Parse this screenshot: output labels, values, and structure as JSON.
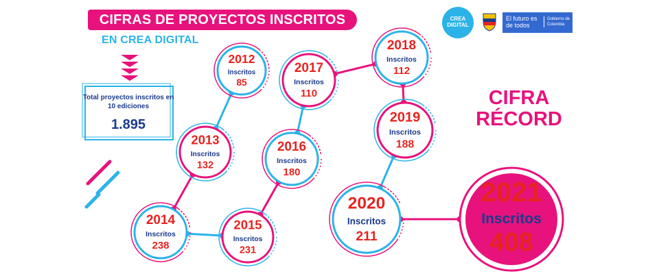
{
  "header": {
    "title": "CIFRAS DE PROYECTOS INSCRITOS",
    "subtitle": "EN CREA DIGITAL"
  },
  "total": {
    "label": "Total  proyectos inscritos en 10 ediciones",
    "value": "1.895"
  },
  "record_label": "CIFRA RÉCORD",
  "logos": {
    "crea": [
      "CREA",
      "DIGITAL"
    ],
    "gov_main": "El futuro es de todos",
    "gov_sub": "Gobierno de Colombia"
  },
  "colors": {
    "pink": "#e8127c",
    "cyan": "#2bb3e8",
    "red": "#e52420",
    "navy": "#1b3a8c"
  },
  "nodes": [
    {
      "year": "2012",
      "label": "Inscritos",
      "value": "85"
    },
    {
      "year": "2013",
      "label": "Inscritos",
      "value": "132"
    },
    {
      "year": "2014",
      "label": "Inscritos",
      "value": "238"
    },
    {
      "year": "2015",
      "label": "Inscritos",
      "value": "231"
    },
    {
      "year": "2016",
      "label": "Inscritos",
      "value": "180"
    },
    {
      "year": "2017",
      "label": "Inscritos",
      "value": "110"
    },
    {
      "year": "2018",
      "label": "Inscritos",
      "value": "112"
    },
    {
      "year": "2019",
      "label": "Inscritos",
      "value": "188"
    },
    {
      "year": "2020",
      "label": "Inscritos",
      "value": "211"
    },
    {
      "year": "2021",
      "label": "Inscritos",
      "value": "408"
    }
  ]
}
